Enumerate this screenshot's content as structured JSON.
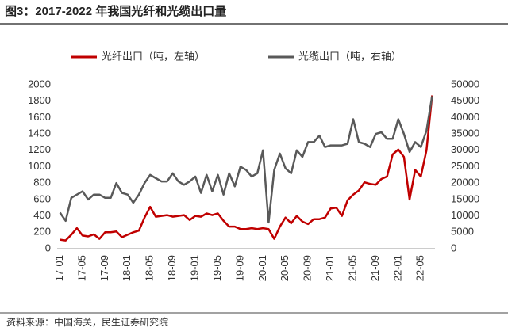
{
  "chart_data": {
    "type": "line",
    "title": "图3：2017-2022 年我国光纤和光缆出口量",
    "source": "资料来源：中国海关，民生证券研究院",
    "categories": [
      "17-01",
      null,
      null,
      null,
      "17-05",
      null,
      null,
      null,
      "17-09",
      null,
      null,
      null,
      "18-01",
      null,
      null,
      null,
      "18-05",
      null,
      null,
      null,
      "18-09",
      null,
      null,
      null,
      "19-01",
      null,
      null,
      null,
      "19-05",
      null,
      null,
      null,
      "19-09",
      null,
      null,
      null,
      "20-01",
      null,
      null,
      null,
      "20-05",
      null,
      null,
      null,
      "20-09",
      null,
      null,
      null,
      "21-01",
      null,
      null,
      null,
      "21-05",
      null,
      null,
      null,
      "21-09",
      null,
      null,
      null,
      "22-01",
      null,
      null,
      null,
      "22-05",
      null,
      null
    ],
    "series": [
      {
        "name": "光纤出口（吨，左轴）",
        "color": "#c00000",
        "axis": "y",
        "values": [
          110,
          100,
          170,
          250,
          160,
          150,
          175,
          120,
          200,
          200,
          210,
          140,
          170,
          200,
          220,
          380,
          510,
          390,
          400,
          410,
          390,
          400,
          410,
          350,
          400,
          390,
          430,
          410,
          430,
          340,
          270,
          270,
          240,
          240,
          250,
          240,
          250,
          240,
          120,
          270,
          380,
          310,
          400,
          330,
          300,
          360,
          360,
          380,
          490,
          500,
          400,
          590,
          660,
          710,
          810,
          790,
          780,
          850,
          880,
          1150,
          1210,
          1120,
          600,
          960,
          880,
          1200,
          1870
        ]
      },
      {
        "name": "光缆出口（吨，右轴）",
        "color": "#595959",
        "axis": "y2",
        "values": [
          11000,
          8500,
          15500,
          16500,
          17500,
          15000,
          16500,
          16500,
          15500,
          15500,
          20000,
          17000,
          16500,
          14000,
          16500,
          20000,
          22500,
          21500,
          20500,
          20500,
          23000,
          20500,
          19500,
          20500,
          22000,
          17000,
          22500,
          17500,
          22500,
          16500,
          23000,
          19000,
          25000,
          24000,
          22000,
          23000,
          30000,
          8000,
          24000,
          29000,
          24500,
          23000,
          30000,
          28000,
          32500,
          32500,
          34500,
          31000,
          31500,
          31500,
          31500,
          32000,
          39500,
          32500,
          32000,
          31000,
          35000,
          35500,
          33500,
          33500,
          39500,
          35000,
          29500,
          32500,
          31000,
          36000,
          46500
        ]
      }
    ],
    "ylim": [
      0,
      2000
    ],
    "yticks": [
      0,
      200,
      400,
      600,
      800,
      1000,
      1200,
      1400,
      1600,
      1800,
      2000
    ],
    "y2lim": [
      0,
      50000
    ],
    "y2ticks": [
      0,
      5000,
      10000,
      15000,
      20000,
      25000,
      30000,
      35000,
      40000,
      45000,
      50000
    ],
    "grid": false,
    "legend": "top"
  }
}
